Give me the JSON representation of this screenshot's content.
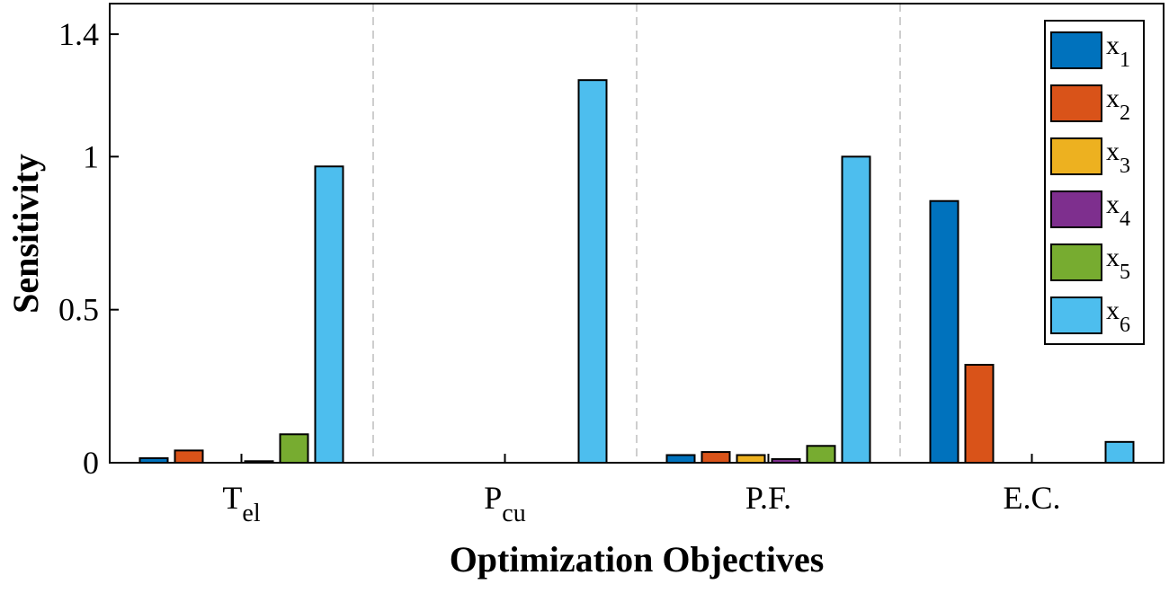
{
  "chart_data": {
    "type": "bar",
    "title": "",
    "xlabel": "Optimization Objectives",
    "ylabel": "Sensitivity",
    "ylim": [
      0,
      1.5
    ],
    "yticks": [
      {
        "value": 0,
        "label": "0"
      },
      {
        "value": 0.5,
        "label": "0.5"
      },
      {
        "value": 1,
        "label": "1"
      },
      {
        "value": 1.4,
        "label": "1.4"
      }
    ],
    "categories": [
      {
        "base": "T",
        "sub": "el"
      },
      {
        "base": "P",
        "sub": "cu"
      },
      {
        "base": "P.F.",
        "sub": ""
      },
      {
        "base": "E.C.",
        "sub": ""
      }
    ],
    "series": [
      {
        "name": "x",
        "sub": "1",
        "color": "#0072BD",
        "values": [
          0.015,
          0.0,
          0.025,
          0.855
        ]
      },
      {
        "name": "x",
        "sub": "2",
        "color": "#D95319",
        "values": [
          0.04,
          0.0,
          0.035,
          0.32
        ]
      },
      {
        "name": "x",
        "sub": "3",
        "color": "#EDB120",
        "values": [
          0.0,
          0.0,
          0.025,
          0.0
        ]
      },
      {
        "name": "x",
        "sub": "4",
        "color": "#7E2F8E",
        "values": [
          0.005,
          0.0,
          0.012,
          0.0
        ]
      },
      {
        "name": "x",
        "sub": "5",
        "color": "#77AC30",
        "values": [
          0.093,
          0.0,
          0.055,
          0.0
        ]
      },
      {
        "name": "x",
        "sub": "6",
        "color": "#4DBEEE",
        "values": [
          0.968,
          1.25,
          1.0,
          0.068
        ]
      }
    ],
    "grid": false,
    "group_separators": true,
    "legend_position": "top-right"
  }
}
